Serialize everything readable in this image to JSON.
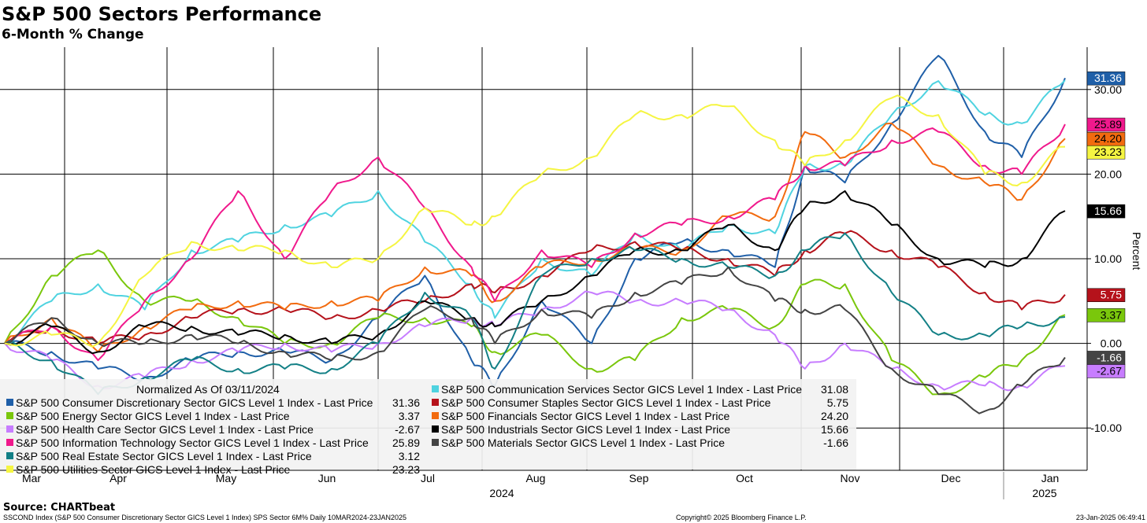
{
  "chart_data": {
    "type": "line",
    "title": "S&P 500 Sectors Performance",
    "subtitle": "6-Month % Change",
    "ylabel": "Percent",
    "ylim": [
      -15,
      35
    ],
    "yticks": [
      "30.00",
      "20.00",
      "10.00",
      "0.00",
      "-10.00"
    ],
    "ytick_values": [
      30,
      20,
      10,
      0,
      -10
    ],
    "xlim": [
      "2024-03-11",
      "2025-01-23"
    ],
    "x_month_labels": [
      "Mar",
      "Apr",
      "May",
      "Jun",
      "Jul",
      "Aug",
      "Sep",
      "Oct",
      "Nov",
      "Dec",
      "Jan"
    ],
    "year_labels": [
      "2024",
      "2025"
    ],
    "grid": true,
    "legend": {
      "placement": "bottom-left",
      "header": "Normalized As Of 03/11/2024",
      "entries": [
        {
          "label": "S&P 500 Consumer Discretionary Sector GICS Level 1 Index - Last Price",
          "value": "31.36",
          "color": "#1f5fa8"
        },
        {
          "label": "S&P 500 Communication Services Sector GICS Level 1 Index - Last Price",
          "value": "31.08",
          "color": "#4fd3e0"
        },
        {
          "label": "S&P 500 Energy Sector GICS Level 1 Index - Last Price",
          "value": "3.37",
          "color": "#7ac70c"
        },
        {
          "label": "S&P 500 Consumer Staples Sector GICS Level 1 Index - Last Price",
          "value": "5.75",
          "color": "#b5121b"
        },
        {
          "label": "S&P 500 Health Care Sector GICS Level 1 Index - Last Price",
          "value": "-2.67",
          "color": "#c77dff"
        },
        {
          "label": "S&P 500 Financials Sector GICS Level 1 Index - Last Price",
          "value": "24.20",
          "color": "#f26b0f"
        },
        {
          "label": "S&P 500 Information Technology Sector GICS Level 1 Index - Last Price",
          "value": "25.89",
          "color": "#f0198c"
        },
        {
          "label": "S&P 500 Industrials Sector GICS Level 1 Index - Last Price",
          "value": "15.66",
          "color": "#000000"
        },
        {
          "label": "S&P 500 Real Estate Sector GICS Level 1 Index - Last Price",
          "value": "3.12",
          "color": "#138086"
        },
        {
          "label": "S&P 500 Materials Sector GICS Level 1 Index - Last Price",
          "value": "-1.66",
          "color": "#444444"
        },
        {
          "label": "S&P 500 Utilities Sector GICS Level 1 Index - Last Price",
          "value": "23.23",
          "color": "#f5f542"
        }
      ]
    },
    "end_labels": [
      {
        "text": "31.36",
        "value": 31.36,
        "bg": "#1f5fa8",
        "fg": "#ffffff"
      },
      {
        "text": "25.89",
        "value": 25.89,
        "bg": "#f0198c",
        "fg": "#000000"
      },
      {
        "text": "24.20",
        "value": 24.2,
        "bg": "#f26b0f",
        "fg": "#000000"
      },
      {
        "text": "23.23",
        "value": 23.23,
        "bg": "#f5f542",
        "fg": "#000000"
      },
      {
        "text": "15.66",
        "value": 15.66,
        "bg": "#000000",
        "fg": "#ffffff"
      },
      {
        "text": "5.75",
        "value": 5.75,
        "bg": "#b5121b",
        "fg": "#ffffff"
      },
      {
        "text": "3.37",
        "value": 3.37,
        "bg": "#7ac70c",
        "fg": "#000000"
      },
      {
        "text": "-1.66",
        "value": -1.66,
        "bg": "#444444",
        "fg": "#ffffff"
      },
      {
        "text": "-2.67",
        "value": -2.67,
        "bg": "#c77dff",
        "fg": "#000000"
      }
    ],
    "series": [
      {
        "name": "S&P 500 Consumer Discretionary Sector GICS Level 1 Index",
        "color": "#1f5fa8",
        "x": [
          "2024-03-11",
          "2024-03-25",
          "2024-04-08",
          "2024-04-22",
          "2024-05-06",
          "2024-05-20",
          "2024-06-03",
          "2024-06-17",
          "2024-07-01",
          "2024-07-15",
          "2024-07-29",
          "2024-08-05",
          "2024-08-19",
          "2024-09-03",
          "2024-09-16",
          "2024-09-30",
          "2024-10-14",
          "2024-10-28",
          "2024-11-06",
          "2024-11-18",
          "2024-12-02",
          "2024-12-16",
          "2024-12-30",
          "2025-01-10",
          "2025-01-23"
        ],
        "values": [
          0,
          -1,
          -3,
          -4,
          -2,
          -1,
          -1,
          -2,
          3,
          8,
          -2,
          -5,
          5,
          0,
          10,
          12,
          11,
          9,
          21,
          19,
          26,
          34,
          25,
          22,
          31.36
        ]
      },
      {
        "name": "S&P 500 Communication Services Sector GICS Level 1 Index",
        "color": "#4fd3e0",
        "x": [
          "2024-03-11",
          "2024-03-25",
          "2024-04-08",
          "2024-04-22",
          "2024-05-06",
          "2024-05-20",
          "2024-06-03",
          "2024-06-17",
          "2024-07-01",
          "2024-07-15",
          "2024-07-29",
          "2024-08-05",
          "2024-08-19",
          "2024-09-03",
          "2024-09-16",
          "2024-09-30",
          "2024-10-14",
          "2024-10-28",
          "2024-11-06",
          "2024-11-18",
          "2024-12-02",
          "2024-12-16",
          "2024-12-30",
          "2025-01-10",
          "2025-01-23"
        ],
        "values": [
          0,
          5,
          7,
          4,
          11,
          12,
          14,
          15,
          18,
          12,
          7,
          3,
          10,
          8,
          13,
          11,
          14,
          13,
          21,
          21,
          27,
          31,
          27,
          26,
          31.08
        ]
      },
      {
        "name": "S&P 500 Energy Sector GICS Level 1 Index",
        "color": "#7ac70c",
        "x": [
          "2024-03-11",
          "2024-03-25",
          "2024-04-08",
          "2024-04-22",
          "2024-05-06",
          "2024-05-20",
          "2024-06-03",
          "2024-06-17",
          "2024-07-01",
          "2024-07-15",
          "2024-07-29",
          "2024-08-05",
          "2024-08-19",
          "2024-09-03",
          "2024-09-16",
          "2024-09-30",
          "2024-10-14",
          "2024-10-28",
          "2024-11-06",
          "2024-11-18",
          "2024-12-02",
          "2024-12-16",
          "2024-12-30",
          "2025-01-10",
          "2025-01-23"
        ],
        "values": [
          0,
          8,
          11,
          5,
          5,
          3,
          0,
          0,
          3,
          3,
          2,
          -1,
          1,
          -3,
          -2,
          3,
          4,
          2,
          7,
          7,
          -2,
          -6,
          -4,
          -2,
          3.37
        ]
      },
      {
        "name": "S&P 500 Consumer Staples Sector GICS Level 1 Index",
        "color": "#b5121b",
        "x": [
          "2024-03-11",
          "2024-03-25",
          "2024-04-08",
          "2024-04-22",
          "2024-05-06",
          "2024-05-20",
          "2024-06-03",
          "2024-06-17",
          "2024-07-01",
          "2024-07-15",
          "2024-07-29",
          "2024-08-05",
          "2024-08-19",
          "2024-09-03",
          "2024-09-16",
          "2024-09-30",
          "2024-10-14",
          "2024-10-28",
          "2024-11-06",
          "2024-11-18",
          "2024-12-02",
          "2024-12-16",
          "2024-12-30",
          "2025-01-10",
          "2025-01-23"
        ],
        "values": [
          0,
          2,
          0,
          1,
          3,
          4,
          4,
          3,
          4,
          5,
          7,
          6,
          8,
          11,
          12,
          11,
          10,
          8,
          11,
          13,
          11,
          9,
          6,
          4,
          5.75
        ]
      },
      {
        "name": "S&P 500 Health Care Sector GICS Level 1 Index",
        "color": "#c77dff",
        "x": [
          "2024-03-11",
          "2024-03-25",
          "2024-04-08",
          "2024-04-22",
          "2024-05-06",
          "2024-05-20",
          "2024-06-03",
          "2024-06-17",
          "2024-07-01",
          "2024-07-15",
          "2024-07-29",
          "2024-08-05",
          "2024-08-19",
          "2024-09-03",
          "2024-09-16",
          "2024-09-30",
          "2024-10-14",
          "2024-10-28",
          "2024-11-06",
          "2024-11-18",
          "2024-12-02",
          "2024-12-16",
          "2024-12-30",
          "2025-01-10",
          "2025-01-23"
        ],
        "values": [
          0,
          -2,
          -5,
          -4,
          -2,
          -1,
          0,
          -1,
          0,
          2,
          3,
          2,
          4,
          6,
          5,
          5,
          4,
          1,
          -3,
          0,
          -3,
          -5,
          -5,
          -5,
          -2.67
        ]
      },
      {
        "name": "S&P 500 Financials Sector GICS Level 1 Index",
        "color": "#f26b0f",
        "x": [
          "2024-03-11",
          "2024-03-25",
          "2024-04-08",
          "2024-04-22",
          "2024-05-06",
          "2024-05-20",
          "2024-06-03",
          "2024-06-17",
          "2024-07-01",
          "2024-07-15",
          "2024-07-29",
          "2024-08-05",
          "2024-08-19",
          "2024-09-03",
          "2024-09-16",
          "2024-09-30",
          "2024-10-14",
          "2024-10-28",
          "2024-11-06",
          "2024-11-18",
          "2024-12-02",
          "2024-12-16",
          "2024-12-30",
          "2025-01-10",
          "2025-01-23"
        ],
        "values": [
          0,
          3,
          -1,
          2,
          4,
          5,
          4,
          5,
          5,
          9,
          8,
          5,
          9,
          10,
          11,
          11,
          15,
          15,
          25,
          22,
          26,
          21,
          19,
          17,
          24.2
        ]
      },
      {
        "name": "S&P 500 Information Technology Sector GICS Level 1 Index",
        "color": "#f0198c",
        "x": [
          "2024-03-11",
          "2024-03-25",
          "2024-04-08",
          "2024-04-22",
          "2024-05-06",
          "2024-05-20",
          "2024-06-03",
          "2024-06-17",
          "2024-07-01",
          "2024-07-15",
          "2024-07-29",
          "2024-08-05",
          "2024-08-19",
          "2024-09-03",
          "2024-09-16",
          "2024-09-30",
          "2024-10-14",
          "2024-10-28",
          "2024-11-06",
          "2024-11-18",
          "2024-12-02",
          "2024-12-16",
          "2024-12-30",
          "2025-01-10",
          "2025-01-23"
        ],
        "values": [
          0,
          2,
          -2,
          5,
          10,
          18,
          10,
          18,
          22,
          16,
          9,
          5,
          11,
          9,
          13,
          14,
          15,
          17,
          21,
          21,
          24,
          25,
          21,
          20,
          25.89
        ]
      },
      {
        "name": "S&P 500 Industrials Sector GICS Level 1 Index",
        "color": "#000000",
        "x": [
          "2024-03-11",
          "2024-03-25",
          "2024-04-08",
          "2024-04-22",
          "2024-05-06",
          "2024-05-20",
          "2024-06-03",
          "2024-06-17",
          "2024-07-01",
          "2024-07-15",
          "2024-07-29",
          "2024-08-05",
          "2024-08-19",
          "2024-09-03",
          "2024-09-16",
          "2024-09-30",
          "2024-10-14",
          "2024-10-28",
          "2024-11-06",
          "2024-11-18",
          "2024-12-02",
          "2024-12-16",
          "2024-12-30",
          "2025-01-10",
          "2025-01-23"
        ],
        "values": [
          0,
          2,
          -1,
          2,
          2,
          1,
          1,
          0,
          1,
          5,
          3,
          2,
          5,
          8,
          11,
          11,
          14,
          11,
          16,
          18,
          14,
          10,
          9,
          10,
          15.66
        ]
      },
      {
        "name": "S&P 500 Real Estate Sector GICS Level 1 Index",
        "color": "#138086",
        "x": [
          "2024-03-11",
          "2024-03-25",
          "2024-04-08",
          "2024-04-22",
          "2024-05-06",
          "2024-05-20",
          "2024-06-03",
          "2024-06-17",
          "2024-07-01",
          "2024-07-15",
          "2024-07-29",
          "2024-08-05",
          "2024-08-19",
          "2024-09-03",
          "2024-09-16",
          "2024-09-30",
          "2024-10-14",
          "2024-10-28",
          "2024-11-06",
          "2024-11-18",
          "2024-12-02",
          "2024-12-16",
          "2024-12-30",
          "2025-01-10",
          "2025-01-23"
        ],
        "values": [
          0,
          -2,
          -6,
          -4,
          -2,
          -3,
          -3,
          -3,
          0,
          6,
          3,
          -3,
          8,
          10,
          11,
          10,
          9,
          8,
          11,
          13,
          6,
          1,
          1,
          2,
          3.12
        ]
      },
      {
        "name": "S&P 500 Materials Sector GICS Level 1 Index",
        "color": "#444444",
        "x": [
          "2024-03-11",
          "2024-03-25",
          "2024-04-08",
          "2024-04-22",
          "2024-05-06",
          "2024-05-20",
          "2024-06-03",
          "2024-06-17",
          "2024-07-01",
          "2024-07-15",
          "2024-07-29",
          "2024-08-05",
          "2024-08-19",
          "2024-09-03",
          "2024-09-16",
          "2024-09-30",
          "2024-10-14",
          "2024-10-28",
          "2024-11-06",
          "2024-11-18",
          "2024-12-02",
          "2024-12-16",
          "2024-12-30",
          "2025-01-10",
          "2025-01-23"
        ],
        "values": [
          0,
          3,
          0,
          0,
          1,
          0,
          -1,
          -2,
          -1,
          4,
          3,
          0,
          4,
          3,
          6,
          7,
          9,
          5,
          4,
          4,
          -3,
          -6,
          -8,
          -5,
          -1.66
        ]
      },
      {
        "name": "S&P 500 Utilities Sector GICS Level 1 Index",
        "color": "#f5f542",
        "x": [
          "2024-03-11",
          "2024-03-25",
          "2024-04-08",
          "2024-04-22",
          "2024-05-06",
          "2024-05-20",
          "2024-06-03",
          "2024-06-17",
          "2024-07-01",
          "2024-07-15",
          "2024-07-29",
          "2024-08-05",
          "2024-08-19",
          "2024-09-03",
          "2024-09-16",
          "2024-09-30",
          "2024-10-14",
          "2024-10-28",
          "2024-11-06",
          "2024-11-18",
          "2024-12-02",
          "2024-12-16",
          "2024-12-30",
          "2025-01-10",
          "2025-01-23"
        ],
        "values": [
          0,
          1,
          0,
          8,
          12,
          11,
          11,
          9,
          10,
          16,
          14,
          15,
          20,
          22,
          27,
          27,
          28,
          24,
          21,
          24,
          29,
          27,
          20,
          19,
          23.23
        ]
      }
    ]
  },
  "footer": {
    "source": "Source: CHARTbeat",
    "index_note": "SSCOND Index (S&P 500 Consumer Discretionary Sector GICS Level 1 Index) SPS Sector 6M%  Daily 10MAR2024-23JAN2025",
    "copyright": "Copyright© 2025 Bloomberg Finance L.P.",
    "timestamp": "23-Jan-2025 06:49:41"
  }
}
